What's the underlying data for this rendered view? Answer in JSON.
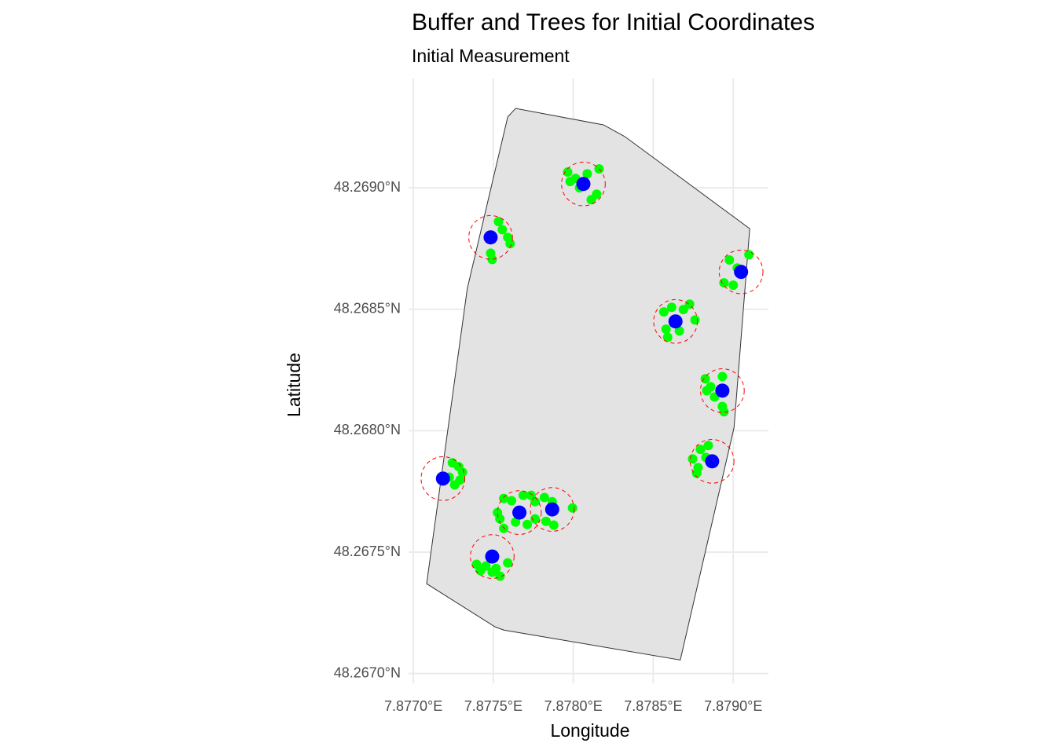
{
  "chart_data": {
    "type": "scatter",
    "title": "Buffer and Trees for Initial Coordinates",
    "subtitle": "Initial Measurement",
    "x_label": "Longitude",
    "y_label": "Latitude",
    "xlim": [
      7.87697,
      7.87922
    ],
    "ylim": [
      48.26696,
      48.26945
    ],
    "xticks": [
      {
        "value": 7.877,
        "label": "7.8770°E"
      },
      {
        "value": 7.8775,
        "label": "7.8775°E"
      },
      {
        "value": 7.878,
        "label": "7.8780°E"
      },
      {
        "value": 7.8785,
        "label": "7.8785°E"
      },
      {
        "value": 7.879,
        "label": "7.8790°E"
      }
    ],
    "yticks": [
      {
        "value": 48.267,
        "label": "48.2670°N"
      },
      {
        "value": 48.2675,
        "label": "48.2675°N"
      },
      {
        "value": 48.268,
        "label": "48.2680°N"
      },
      {
        "value": 48.2685,
        "label": "48.2685°N"
      },
      {
        "value": 48.269,
        "label": "48.2690°N"
      }
    ],
    "grid": true,
    "boundary": {
      "fill": "#e3e3e3",
      "stroke": "#333333",
      "x": [
        7.877639,
        7.87759,
        7.877337,
        7.877083,
        7.877512,
        7.877566,
        7.878669,
        7.879005,
        7.879103,
        7.878322,
        7.87819
      ],
      "y": [
        48.269327,
        48.269292,
        48.268585,
        48.26737,
        48.267192,
        48.267179,
        48.267056,
        48.268013,
        48.268832,
        48.269211,
        48.269259
      ]
    },
    "buffer_radius": 9e-05,
    "buffer_color": "#ff0000",
    "series": [
      {
        "color": "#00ff00",
        "x": [
          7.877965,
          7.878014,
          7.878087,
          7.878161,
          7.878146,
          7.878112,
          7.87798,
          7.878039,
          7.877532,
          7.877556,
          7.87759,
          7.877605,
          7.877483,
          7.877493,
          7.878976,
          7.879098,
          7.878942,
          7.879,
          7.879025,
          7.878566,
          7.878615,
          7.878688,
          7.878727,
          7.878761,
          7.87859,
          7.87858,
          7.878663,
          7.878825,
          7.878834,
          7.878883,
          7.878932,
          7.878932,
          7.878942,
          7.878859,
          7.878746,
          7.878795,
          7.878844,
          7.87878,
          7.878771,
          7.878829,
          7.877244,
          7.877283,
          7.877292,
          7.877258,
          7.877224,
          7.877307,
          7.877565,
          7.877541,
          7.877614,
          7.877687,
          7.877736,
          7.877761,
          7.877639,
          7.877565,
          7.877526,
          7.877712,
          7.877761,
          7.877819,
          7.877868,
          7.877829,
          7.877878,
          7.877995,
          7.877395,
          7.87742,
          7.877517,
          7.877542,
          7.87759,
          7.877493,
          7.877454
        ],
        "y": [
          48.269065,
          48.269039,
          48.269058,
          48.269078,
          48.268974,
          48.268951,
          48.269026,
          48.269,
          48.268861,
          48.268828,
          48.268796,
          48.26877,
          48.268731,
          48.268705,
          48.268703,
          48.268725,
          48.268609,
          48.268599,
          48.26867,
          48.268489,
          48.268508,
          48.268499,
          48.268521,
          48.268456,
          48.268385,
          48.268418,
          48.268411,
          48.268214,
          48.268165,
          48.268139,
          48.268223,
          48.2681,
          48.268078,
          48.268181,
          48.267884,
          48.267923,
          48.267939,
          48.267848,
          48.267825,
          48.26789,
          48.267868,
          48.267852,
          48.267797,
          48.267777,
          48.267809,
          48.267829,
          48.267721,
          48.267637,
          48.267712,
          48.267734,
          48.267734,
          48.267637,
          48.267624,
          48.267598,
          48.267663,
          48.267614,
          48.267708,
          48.267725,
          48.267708,
          48.267627,
          48.267611,
          48.267682,
          48.26745,
          48.267424,
          48.267433,
          48.267401,
          48.267456,
          48.267417,
          48.267443
        ]
      },
      {
        "color": "#0000ff",
        "x": [
          7.878063,
          7.877483,
          7.879049,
          7.878639,
          7.878932,
          7.878868,
          7.877185,
          7.877663,
          7.877868,
          7.877493
        ],
        "y": [
          48.269016,
          48.268796,
          48.268654,
          48.26845,
          48.268165,
          48.267874,
          48.267803,
          48.267663,
          48.267676,
          48.267482
        ]
      }
    ]
  }
}
